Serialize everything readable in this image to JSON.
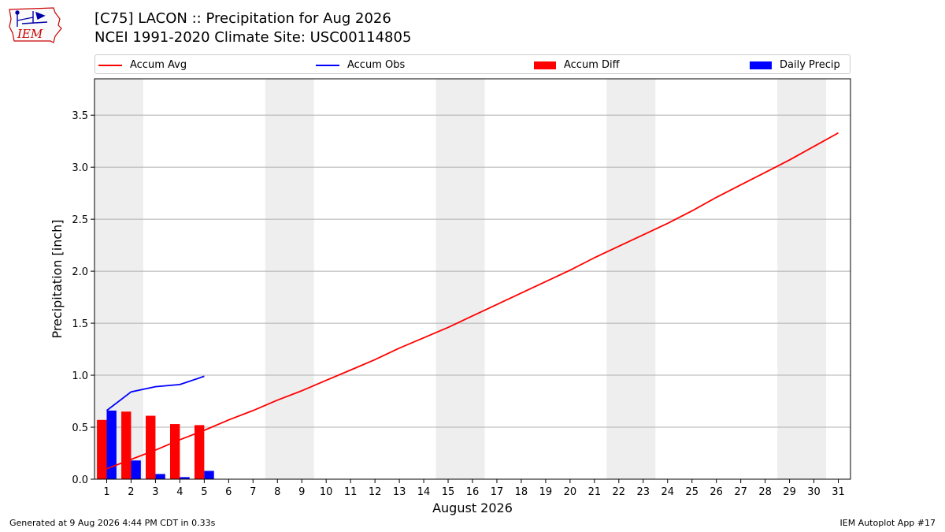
{
  "header": {
    "title": "[C75] LACON :: Precipitation for Aug 2026",
    "subtitle": "NCEI 1991-2020 Climate Site: USC00114805"
  },
  "logo": {
    "text": "IEM",
    "color": "#cc0000",
    "accent": "#0000aa"
  },
  "legend": {
    "items": [
      {
        "label": "Accum Avg",
        "kind": "line",
        "color": "#ff0000"
      },
      {
        "label": "Accum Obs",
        "kind": "line",
        "color": "#0000ff"
      },
      {
        "label": "Accum Diff",
        "kind": "bar",
        "color": "#ff0000"
      },
      {
        "label": "Daily Precip",
        "kind": "bar",
        "color": "#0000ff"
      }
    ]
  },
  "chart_data": {
    "type": "bar",
    "xlabel": "August 2026",
    "ylabel": "Precipitation [inch]",
    "ylim": [
      0,
      3.85
    ],
    "xlim": [
      0.5,
      31.5
    ],
    "yticks": [
      0.0,
      0.5,
      1.0,
      1.5,
      2.0,
      2.5,
      3.0,
      3.5
    ],
    "ytick_labels": [
      "0.0",
      "0.5",
      "1.0",
      "1.5",
      "2.0",
      "2.5",
      "3.0",
      "3.5"
    ],
    "categories": [
      "1",
      "2",
      "3",
      "4",
      "5",
      "6",
      "7",
      "8",
      "9",
      "10",
      "11",
      "12",
      "13",
      "14",
      "15",
      "16",
      "17",
      "18",
      "19",
      "20",
      "21",
      "22",
      "23",
      "24",
      "25",
      "26",
      "27",
      "28",
      "29",
      "30",
      "31"
    ],
    "weekend_bands": [
      [
        1,
        2
      ],
      [
        8,
        9
      ],
      [
        15,
        16
      ],
      [
        22,
        23
      ],
      [
        29,
        30
      ]
    ],
    "grid": "horizontal",
    "series": [
      {
        "name": "Accum Avg",
        "kind": "line",
        "color": "#ff0000",
        "x": [
          1,
          2,
          3,
          4,
          5,
          6,
          7,
          8,
          9,
          10,
          11,
          12,
          13,
          14,
          15,
          16,
          17,
          18,
          19,
          20,
          21,
          22,
          23,
          24,
          25,
          26,
          27,
          28,
          29,
          30,
          31
        ],
        "values": [
          0.1,
          0.19,
          0.28,
          0.38,
          0.47,
          0.57,
          0.66,
          0.76,
          0.85,
          0.95,
          1.05,
          1.15,
          1.26,
          1.36,
          1.46,
          1.57,
          1.68,
          1.79,
          1.9,
          2.01,
          2.13,
          2.24,
          2.35,
          2.46,
          2.58,
          2.71,
          2.83,
          2.95,
          3.07,
          3.2,
          3.33
        ]
      },
      {
        "name": "Accum Obs",
        "kind": "line",
        "color": "#0000ff",
        "x": [
          1,
          2,
          3,
          4,
          5
        ],
        "values": [
          0.66,
          0.84,
          0.89,
          0.91,
          0.99
        ]
      },
      {
        "name": "Accum Diff",
        "kind": "bar",
        "color": "#ff0000",
        "x": [
          1,
          2,
          3,
          4,
          5
        ],
        "values": [
          0.57,
          0.65,
          0.61,
          0.53,
          0.52
        ]
      },
      {
        "name": "Daily Precip",
        "kind": "bar",
        "color": "#0000ff",
        "x": [
          1,
          2,
          3,
          4,
          5
        ],
        "values": [
          0.66,
          0.18,
          0.05,
          0.02,
          0.08
        ]
      }
    ]
  },
  "footer": {
    "left": "Generated at 9 Aug 2026 4:44 PM CDT in 0.33s",
    "right": "IEM Autoplot App #17"
  }
}
